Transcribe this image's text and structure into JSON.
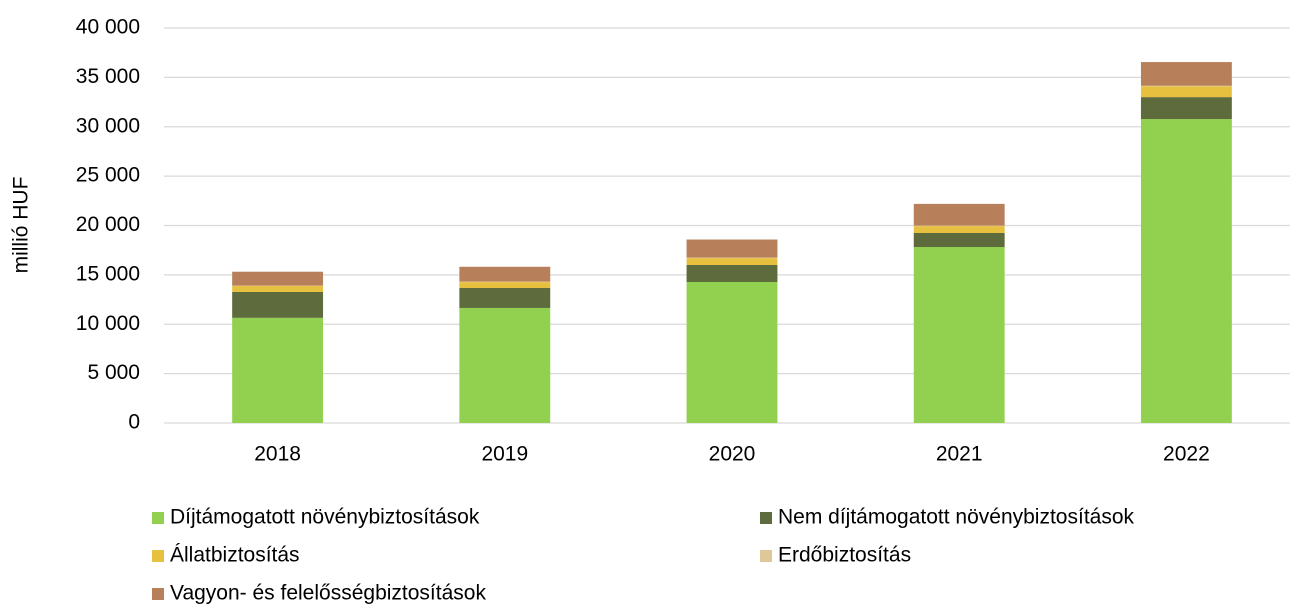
{
  "chart_data": {
    "type": "stacked-bar",
    "y_label": "millió HUF",
    "categories": [
      "2018",
      "2019",
      "2020",
      "2021",
      "2022"
    ],
    "series": [
      {
        "name": "Díjtámogatott növénybiztosítások",
        "color": "#92d050",
        "values": [
          10650,
          11650,
          14280,
          17820,
          30780
        ]
      },
      {
        "name": "Nem díjtámogatott növénybiztosítások",
        "color": "#5e6b3c",
        "values": [
          2620,
          2020,
          1720,
          1420,
          2220
        ]
      },
      {
        "name": "Állatbiztosítás",
        "color": "#e8c040",
        "values": [
          600,
          600,
          700,
          700,
          1100
        ]
      },
      {
        "name": "Erdőbiztosítás",
        "color": "#dec89a",
        "values": [
          50,
          50,
          50,
          50,
          50
        ]
      },
      {
        "name": "Vagyon- és felelősségbiztosítások",
        "color": "#b8805a",
        "values": [
          1400,
          1500,
          1830,
          2200,
          2400
        ]
      }
    ],
    "ylim": [
      0,
      40000
    ],
    "yticks": [
      0,
      {
        "value": 5000,
        "label": "5 000"
      },
      {
        "value": 10000,
        "label": "10 000"
      },
      {
        "value": 15000,
        "label": "15 000"
      },
      {
        "value": 20000,
        "label": "20 000"
      },
      {
        "value": 25000,
        "label": "25 000"
      },
      {
        "value": 30000,
        "label": "30 000"
      },
      {
        "value": 35000,
        "label": "35 000"
      },
      {
        "value": 40000,
        "label": "40 000"
      }
    ],
    "grid": true
  }
}
